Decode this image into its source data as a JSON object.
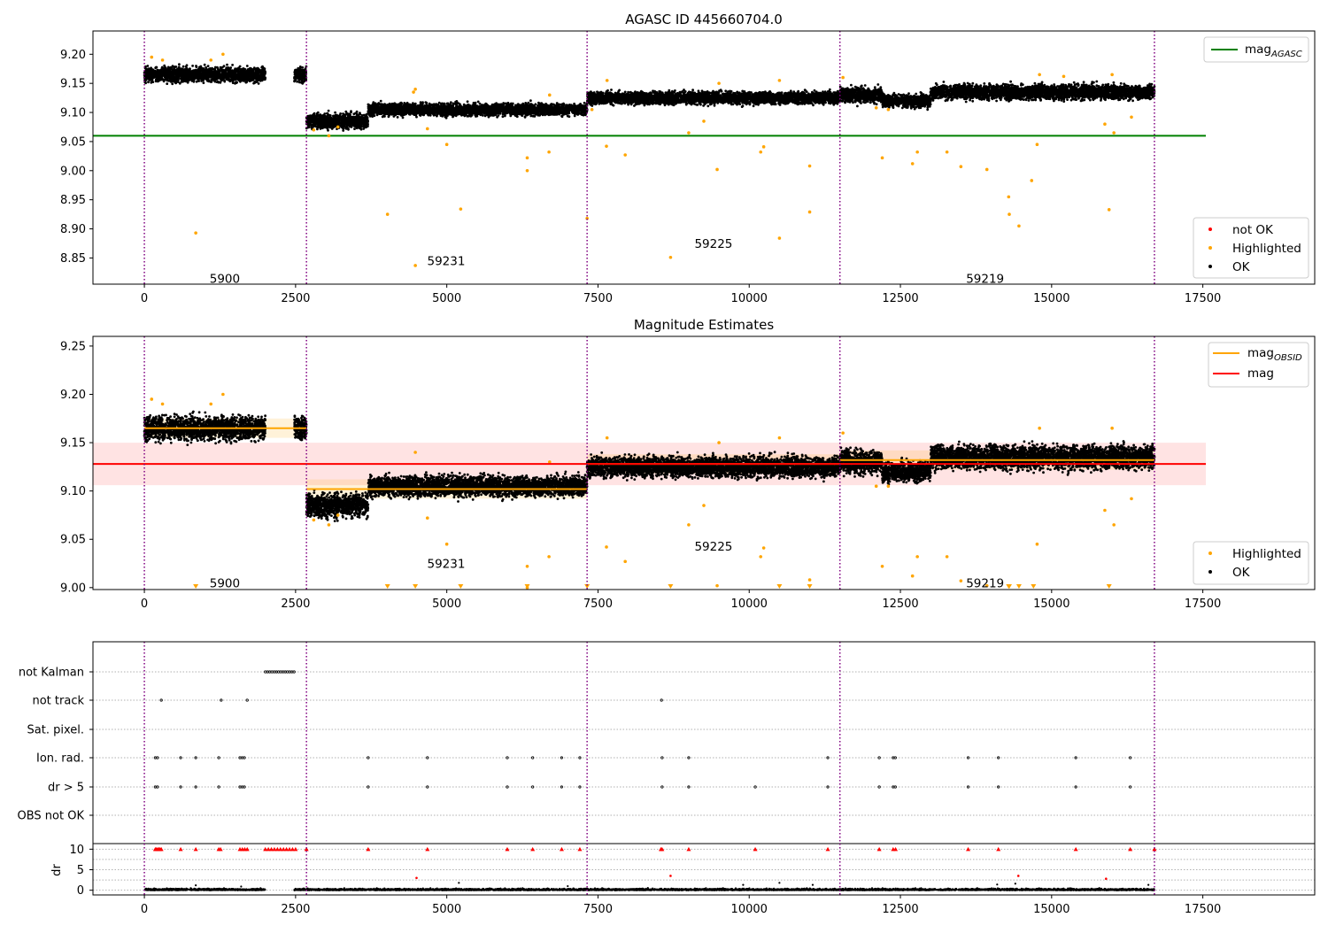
{
  "colors": {
    "ok": "#000000",
    "highlighted": "#ffa500",
    "not_ok": "#ff0000",
    "agasc_line": "#008000",
    "mag_line": "#ff0000",
    "obsid_line": "#ffa500",
    "obs_boundary": "#800080",
    "band": "#ffc0c0",
    "grid": "#b0b0b0"
  },
  "chart_data": [
    {
      "type": "scatter",
      "title": "AGASC ID 445660704.0",
      "xlim": [
        -850,
        19350
      ],
      "ylim": [
        8.805,
        9.24
      ],
      "xticks": [
        0,
        2500,
        5000,
        7500,
        10000,
        12500,
        15000,
        17500
      ],
      "yticks": [
        8.85,
        8.9,
        8.95,
        9.0,
        9.05,
        9.1,
        9.15,
        9.2
      ],
      "legend_top": {
        "position": "upper right",
        "entries": [
          {
            "label": "mag",
            "subscript": "AGASC",
            "color": "#008000"
          }
        ]
      },
      "legend_bottom": {
        "position": "lower right",
        "entries": [
          {
            "label": "not OK",
            "color": "#ff0000"
          },
          {
            "label": "Highlighted",
            "color": "#ffa500"
          },
          {
            "label": "OK",
            "color": "#000000"
          }
        ]
      },
      "hline": {
        "name": "mag_AGASC",
        "y": 9.06,
        "x_range": [
          -850,
          17550
        ]
      },
      "observations": [
        {
          "label": "5900",
          "x_start": 0,
          "x_end": 2680,
          "label_x": 1330,
          "label_y": 8.815,
          "ok_segments": [
            [
              0,
              2000,
              9.165,
              0.012
            ],
            [
              2480,
              2680,
              9.165,
              0.012
            ]
          ]
        },
        {
          "label": "59231",
          "x_start": 2680,
          "x_end": 7320,
          "label_x": 4990,
          "label_y": 8.845,
          "ok_segments": [
            [
              2680,
              3700,
              9.085,
              0.012
            ],
            [
              3700,
              7320,
              9.105,
              0.01
            ]
          ]
        },
        {
          "label": "59225",
          "x_start": 7320,
          "x_end": 11500,
          "label_x": 9410,
          "label_y": 8.875,
          "ok_segments": [
            [
              7320,
              11500,
              9.125,
              0.01
            ]
          ]
        },
        {
          "label": "59219",
          "x_start": 11500,
          "x_end": 16700,
          "label_x": 13900,
          "label_y": 8.815,
          "ok_segments": [
            [
              11500,
              12200,
              9.13,
              0.012
            ],
            [
              12200,
              13000,
              9.12,
              0.01
            ],
            [
              13000,
              16700,
              9.135,
              0.012
            ]
          ]
        }
      ],
      "highlighted_points": [
        [
          850,
          8.893
        ],
        [
          4020,
          8.925
        ],
        [
          4480,
          8.837
        ],
        [
          5230,
          8.934
        ],
        [
          6330,
          9.0
        ],
        [
          6330,
          9.022
        ],
        [
          6690,
          9.032
        ],
        [
          7320,
          8.918
        ],
        [
          7640,
          9.042
        ],
        [
          7950,
          9.027
        ],
        [
          8700,
          8.851
        ],
        [
          9470,
          9.002
        ],
        [
          10190,
          9.032
        ],
        [
          10240,
          9.041
        ],
        [
          10500,
          8.884
        ],
        [
          11000,
          9.008
        ],
        [
          11000,
          8.929
        ],
        [
          12200,
          9.022
        ],
        [
          12700,
          9.012
        ],
        [
          12780,
          9.032
        ],
        [
          13270,
          9.032
        ],
        [
          13500,
          9.007
        ],
        [
          13930,
          9.002
        ],
        [
          14290,
          8.955
        ],
        [
          14300,
          8.925
        ],
        [
          14460,
          8.905
        ],
        [
          14670,
          8.983
        ],
        [
          14760,
          9.045
        ],
        [
          15950,
          8.933
        ],
        [
          16030,
          9.065
        ],
        [
          5000,
          9.045
        ],
        [
          9000,
          9.065
        ],
        [
          9250,
          9.085
        ],
        [
          4680,
          9.072
        ],
        [
          15880,
          9.08
        ],
        [
          16320,
          9.092
        ]
      ]
    },
    {
      "type": "scatter",
      "title": "Magnitude Estimates",
      "xlim": [
        -850,
        19350
      ],
      "ylim": [
        8.998,
        9.26
      ],
      "xticks": [
        0,
        2500,
        5000,
        7500,
        10000,
        12500,
        15000,
        17500
      ],
      "yticks": [
        9.0,
        9.05,
        9.1,
        9.15,
        9.2,
        9.25
      ],
      "legend_top": {
        "position": "upper right",
        "entries": [
          {
            "label": "mag",
            "subscript": "OBSID",
            "color": "#ffa500"
          },
          {
            "label": "mag",
            "subscript": "",
            "color": "#ff0000"
          }
        ]
      },
      "legend_bottom": {
        "position": "lower right",
        "entries": [
          {
            "label": "Highlighted",
            "color": "#ffa500"
          },
          {
            "label": "OK",
            "color": "#000000"
          }
        ]
      },
      "mag": {
        "y": 9.128,
        "band": [
          9.106,
          9.15
        ],
        "x_range": [
          -850,
          17550
        ]
      },
      "mag_obsid": [
        {
          "x_start": 0,
          "x_end": 2680,
          "y": 9.165
        },
        {
          "x_start": 2680,
          "x_end": 7320,
          "y": 9.102
        },
        {
          "x_start": 7320,
          "x_end": 11500,
          "y": 9.128
        },
        {
          "x_start": 11500,
          "x_end": 16700,
          "y": 9.132
        }
      ],
      "obs_labels": [
        {
          "label": "5900",
          "label_x": 1330,
          "label_y": 9.005
        },
        {
          "label": "59231",
          "label_x": 4990,
          "label_y": 9.025
        },
        {
          "label": "59225",
          "label_x": 9410,
          "label_y": 9.043
        },
        {
          "label": "59219",
          "label_x": 13900,
          "label_y": 9.005
        }
      ],
      "clipped_markers_x": [
        850,
        4020,
        4480,
        5230,
        6330,
        7320,
        8700,
        10500,
        11000,
        14290,
        14300,
        14460,
        14700,
        15950
      ]
    },
    {
      "type": "scatter",
      "title": "",
      "xlim": [
        -850,
        19350
      ],
      "xticks": [
        0,
        2500,
        5000,
        7500,
        10000,
        12500,
        15000,
        17500
      ],
      "flag_rows": [
        "not Kalman",
        "not track",
        "Sat. pixel.",
        "Ion. rad.",
        "dr > 5",
        "OBS not OK"
      ],
      "flags": {
        "not Kalman": [
          [
            2000,
            2500
          ]
        ],
        "not track": [
          [
            280,
            280
          ],
          [
            1270,
            1270
          ],
          [
            1700,
            1700
          ],
          [
            8550,
            8550
          ]
        ],
        "Sat. pixel.": [],
        "Ion. rad.": [
          [
            180,
            250
          ],
          [
            600,
            600
          ],
          [
            850,
            850
          ],
          [
            1230,
            1230
          ],
          [
            1580,
            1680
          ],
          [
            3700,
            3700
          ],
          [
            4680,
            4680
          ],
          [
            6000,
            6000
          ],
          [
            6420,
            6420
          ],
          [
            6900,
            6900
          ],
          [
            7200,
            7200
          ],
          [
            8560,
            8560
          ],
          [
            9000,
            9000
          ],
          [
            11300,
            11300
          ],
          [
            12150,
            12150
          ],
          [
            12380,
            12450
          ],
          [
            13620,
            13620
          ],
          [
            14120,
            14120
          ],
          [
            15400,
            15400
          ],
          [
            16300,
            16300
          ]
        ],
        "dr > 5": [
          [
            180,
            250
          ],
          [
            600,
            600
          ],
          [
            850,
            850
          ],
          [
            1230,
            1230
          ],
          [
            1580,
            1680
          ],
          [
            3700,
            3700
          ],
          [
            4680,
            4680
          ],
          [
            6000,
            6000
          ],
          [
            6420,
            6420
          ],
          [
            6900,
            6900
          ],
          [
            7200,
            7200
          ],
          [
            8560,
            8560
          ],
          [
            9000,
            9000
          ],
          [
            10100,
            10100
          ],
          [
            11300,
            11300
          ],
          [
            12150,
            12150
          ],
          [
            12380,
            12450
          ],
          [
            13620,
            13620
          ],
          [
            14120,
            14120
          ],
          [
            15400,
            15400
          ],
          [
            16300,
            16300
          ]
        ],
        "OBS not OK": []
      },
      "dr_axis": {
        "ylabel": "dr",
        "ylim": [
          -0.5,
          10.5
        ],
        "yticks": [
          0,
          5,
          10
        ]
      },
      "dr_red_at_10_x": [
        180,
        200,
        220,
        240,
        260,
        280,
        600,
        850,
        1230,
        1260,
        1580,
        1620,
        1660,
        1700,
        2000,
        2050,
        2100,
        2150,
        2200,
        2250,
        2300,
        2350,
        2400,
        2450,
        2500,
        2680,
        3700,
        4680,
        6000,
        6420,
        6900,
        7200,
        8540,
        8560,
        9000,
        10100,
        11300,
        12150,
        12380,
        12420,
        13620,
        14120,
        15400,
        16300,
        16700
      ],
      "dr_red_other": [
        [
          4500,
          3.0
        ],
        [
          8700,
          3.5
        ],
        [
          14450,
          3.5
        ],
        [
          15900,
          2.8
        ]
      ],
      "dr_ok_segments": [
        [
          0,
          2000
        ],
        [
          2480,
          16700
        ]
      ]
    }
  ]
}
